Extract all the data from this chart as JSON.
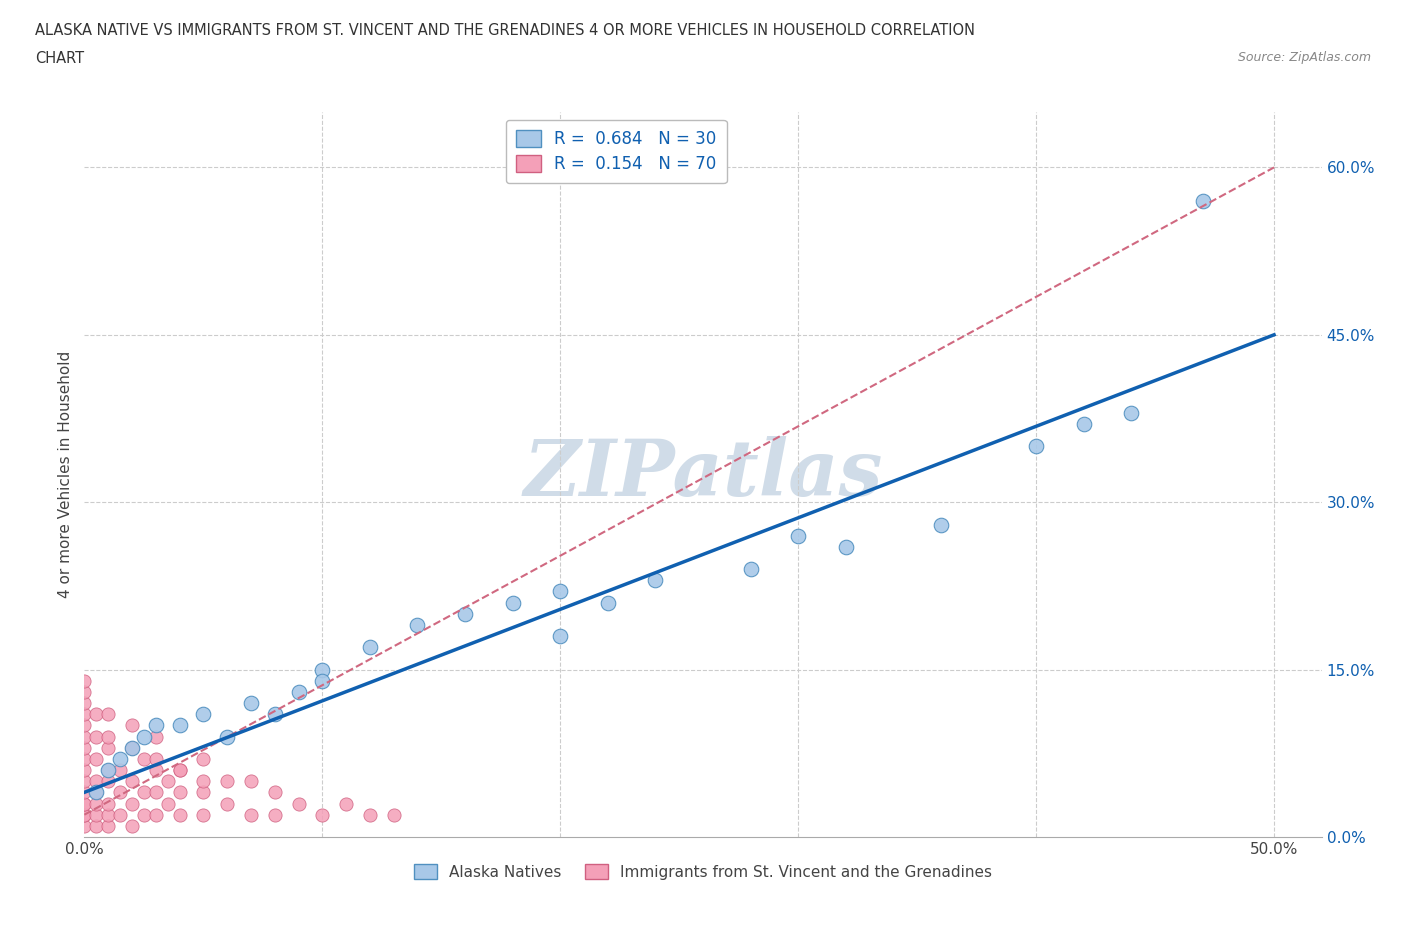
{
  "title_line1": "ALASKA NATIVE VS IMMIGRANTS FROM ST. VINCENT AND THE GRENADINES 4 OR MORE VEHICLES IN HOUSEHOLD CORRELATION",
  "title_line2": "CHART",
  "source_text": "Source: ZipAtlas.com",
  "ylabel": "4 or more Vehicles in Household",
  "xlim": [
    0.0,
    0.52
  ],
  "ylim": [
    0.0,
    0.65
  ],
  "xticks": [
    0.0,
    0.1,
    0.2,
    0.3,
    0.4,
    0.5
  ],
  "yticks": [
    0.0,
    0.15,
    0.3,
    0.45,
    0.6
  ],
  "yticklabels": [
    "0.0%",
    "15.0%",
    "30.0%",
    "45.0%",
    "60.0%"
  ],
  "blue_R": 0.684,
  "blue_N": 30,
  "pink_R": 0.154,
  "pink_N": 70,
  "blue_color": "#a8c8e8",
  "pink_color": "#f4a0b8",
  "blue_edge_color": "#5090c0",
  "pink_edge_color": "#d06080",
  "blue_line_color": "#1060b0",
  "pink_line_color": "#d06880",
  "grid_color": "#cccccc",
  "watermark": "ZIPatlas",
  "watermark_color": "#d0dce8",
  "blue_scatter_x": [
    0.005,
    0.01,
    0.015,
    0.02,
    0.025,
    0.03,
    0.04,
    0.05,
    0.06,
    0.07,
    0.08,
    0.09,
    0.1,
    0.12,
    0.14,
    0.16,
    0.18,
    0.2,
    0.22,
    0.24,
    0.28,
    0.32,
    0.36,
    0.4,
    0.42,
    0.44,
    0.2,
    0.1,
    0.3,
    0.47
  ],
  "blue_scatter_y": [
    0.04,
    0.06,
    0.07,
    0.08,
    0.09,
    0.1,
    0.1,
    0.11,
    0.09,
    0.12,
    0.11,
    0.13,
    0.15,
    0.17,
    0.19,
    0.2,
    0.21,
    0.22,
    0.21,
    0.23,
    0.24,
    0.26,
    0.28,
    0.35,
    0.37,
    0.38,
    0.18,
    0.14,
    0.27,
    0.57
  ],
  "pink_scatter_x": [
    0.0,
    0.0,
    0.0,
    0.0,
    0.0,
    0.0,
    0.0,
    0.0,
    0.0,
    0.0,
    0.005,
    0.005,
    0.005,
    0.005,
    0.005,
    0.005,
    0.01,
    0.01,
    0.01,
    0.01,
    0.01,
    0.01,
    0.015,
    0.015,
    0.015,
    0.02,
    0.02,
    0.02,
    0.02,
    0.025,
    0.025,
    0.025,
    0.03,
    0.03,
    0.03,
    0.035,
    0.035,
    0.04,
    0.04,
    0.04,
    0.05,
    0.05,
    0.05,
    0.06,
    0.06,
    0.07,
    0.07,
    0.08,
    0.08,
    0.09,
    0.1,
    0.11,
    0.12,
    0.13,
    0.0,
    0.0,
    0.0,
    0.0,
    0.0,
    0.0,
    0.005,
    0.005,
    0.01,
    0.01,
    0.02,
    0.02,
    0.03,
    0.03,
    0.04,
    0.05
  ],
  "pink_scatter_y": [
    0.01,
    0.02,
    0.02,
    0.03,
    0.03,
    0.04,
    0.05,
    0.06,
    0.07,
    0.08,
    0.01,
    0.02,
    0.03,
    0.04,
    0.05,
    0.07,
    0.01,
    0.02,
    0.03,
    0.05,
    0.06,
    0.08,
    0.02,
    0.04,
    0.06,
    0.01,
    0.03,
    0.05,
    0.08,
    0.02,
    0.04,
    0.07,
    0.02,
    0.04,
    0.06,
    0.03,
    0.05,
    0.02,
    0.04,
    0.06,
    0.02,
    0.04,
    0.07,
    0.03,
    0.05,
    0.02,
    0.05,
    0.02,
    0.04,
    0.03,
    0.02,
    0.03,
    0.02,
    0.02,
    0.09,
    0.1,
    0.11,
    0.12,
    0.13,
    0.14,
    0.09,
    0.11,
    0.09,
    0.11,
    0.08,
    0.1,
    0.07,
    0.09,
    0.06,
    0.05
  ],
  "blue_trendline_x": [
    0.0,
    0.5
  ],
  "blue_trendline_y": [
    0.04,
    0.45
  ],
  "pink_trendline_x": [
    0.0,
    0.5
  ],
  "pink_trendline_y": [
    0.02,
    0.6
  ]
}
